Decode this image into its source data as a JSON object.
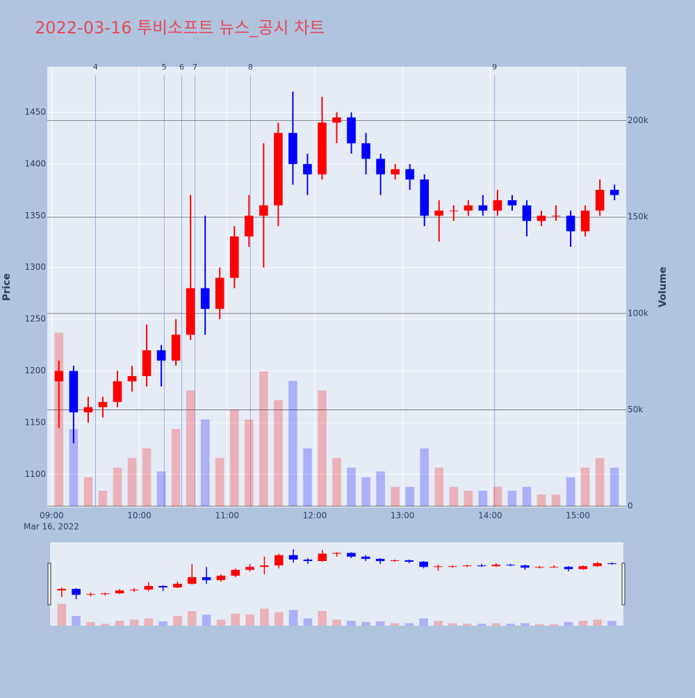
{
  "chart_data": {
    "type": "candlestick",
    "title": "2022-03-16 투비소프트 뉴스_공시 차트",
    "y_title": "Price",
    "y2_title": "Volume",
    "date_label": "Mar 16, 2022",
    "increasing_color": "#ff0000",
    "decreasing_color": "#0000ff",
    "x": [
      "09:00",
      "09:10",
      "09:20",
      "09:30",
      "09:40",
      "09:50",
      "10:00",
      "10:10",
      "10:20",
      "10:30",
      "10:40",
      "10:50",
      "11:00",
      "11:10",
      "11:20",
      "11:30",
      "11:40",
      "11:50",
      "12:00",
      "12:10",
      "12:20",
      "12:30",
      "12:40",
      "12:50",
      "13:00",
      "13:10",
      "13:20",
      "13:30",
      "13:40",
      "13:50",
      "14:00",
      "14:10",
      "14:20",
      "14:30",
      "14:40",
      "14:50",
      "15:00",
      "15:10",
      "15:20"
    ],
    "open": [
      1190,
      1200,
      1160,
      1165,
      1170,
      1190,
      1195,
      1220,
      1210,
      1235,
      1280,
      1260,
      1290,
      1330,
      1350,
      1360,
      1430,
      1400,
      1390,
      1440,
      1445,
      1420,
      1405,
      1390,
      1395,
      1385,
      1350,
      1355,
      1355,
      1360,
      1355,
      1365,
      1360,
      1345,
      1350,
      1350,
      1335,
      1355,
      1375
    ],
    "high": [
      1210,
      1205,
      1175,
      1175,
      1200,
      1205,
      1245,
      1225,
      1250,
      1370,
      1350,
      1300,
      1340,
      1370,
      1420,
      1440,
      1470,
      1410,
      1465,
      1450,
      1450,
      1430,
      1410,
      1400,
      1400,
      1390,
      1365,
      1360,
      1365,
      1370,
      1375,
      1370,
      1365,
      1355,
      1360,
      1355,
      1360,
      1385,
      1380
    ],
    "low": [
      1145,
      1130,
      1150,
      1155,
      1165,
      1180,
      1185,
      1185,
      1205,
      1230,
      1235,
      1250,
      1280,
      1320,
      1300,
      1340,
      1380,
      1370,
      1385,
      1420,
      1410,
      1390,
      1370,
      1385,
      1375,
      1340,
      1325,
      1345,
      1350,
      1350,
      1350,
      1355,
      1330,
      1340,
      1345,
      1320,
      1330,
      1350,
      1365
    ],
    "close": [
      1200,
      1160,
      1165,
      1170,
      1190,
      1195,
      1220,
      1210,
      1235,
      1280,
      1260,
      1290,
      1330,
      1350,
      1360,
      1430,
      1400,
      1390,
      1440,
      1445,
      1420,
      1405,
      1390,
      1395,
      1385,
      1350,
      1355,
      1355,
      1360,
      1355,
      1365,
      1360,
      1345,
      1350,
      1350,
      1335,
      1355,
      1375,
      1370
    ],
    "volume": [
      90000,
      40000,
      15000,
      8000,
      20000,
      25000,
      30000,
      18000,
      40000,
      60000,
      45000,
      25000,
      50000,
      45000,
      70000,
      55000,
      65000,
      30000,
      60000,
      25000,
      20000,
      15000,
      18000,
      10000,
      10000,
      30000,
      20000,
      10000,
      8000,
      8000,
      10000,
      8000,
      10000,
      6000,
      6000,
      15000,
      20000,
      25000,
      20000
    ],
    "xlim": [
      "08:57",
      "15:33"
    ],
    "xticks": [
      "09:00",
      "10:00",
      "11:00",
      "12:00",
      "13:00",
      "14:00",
      "15:00"
    ],
    "ylim": [
      1068,
      1494
    ],
    "yticks": [
      1100,
      1150,
      1200,
      1250,
      1300,
      1350,
      1400,
      1450
    ],
    "y2lim": [
      -700,
      228000
    ],
    "y2ticks": [
      0,
      {
        "value": 50000,
        "label": "50k"
      },
      {
        "value": 100000,
        "label": "100k"
      },
      {
        "value": 150000,
        "label": "150k"
      },
      {
        "value": 200000,
        "label": "200k"
      }
    ],
    "news": [
      {
        "label": "4",
        "x": "09:30"
      },
      {
        "label": "5",
        "x": "10:17"
      },
      {
        "label": "6",
        "x": "10:29"
      },
      {
        "label": "7",
        "x": "10:38"
      },
      {
        "label": "8",
        "x": "11:16"
      },
      {
        "label": "9",
        "x": "14:03"
      }
    ]
  }
}
